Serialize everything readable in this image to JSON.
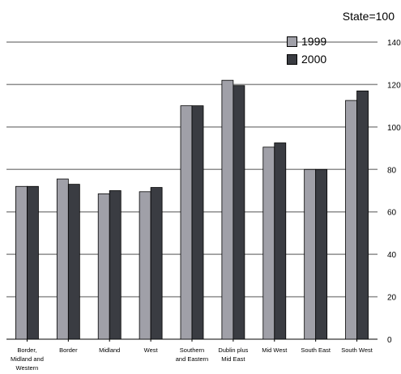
{
  "chart_data": {
    "type": "bar",
    "note": "State=100",
    "categories": [
      [
        "Border,",
        "Midland and",
        "Western"
      ],
      [
        "Border"
      ],
      [
        "Midland"
      ],
      [
        "West"
      ],
      [
        "Southern",
        "and Eastern"
      ],
      [
        "Dublin plus",
        "Mid East"
      ],
      [
        "Mid West"
      ],
      [
        "South East"
      ],
      [
        "South West"
      ]
    ],
    "series": [
      {
        "name": "1999",
        "color": "#a0a0a8",
        "values": [
          72,
          75.5,
          68.5,
          69.5,
          110,
          122,
          90.5,
          80,
          112.5
        ]
      },
      {
        "name": "2000",
        "color": "#3a3c42",
        "values": [
          72,
          73,
          70,
          71.5,
          110,
          119.5,
          92.5,
          80,
          117
        ]
      }
    ],
    "yticks": [
      0,
      20,
      40,
      60,
      80,
      100,
      120,
      140
    ],
    "ylim": [
      0,
      140
    ],
    "grid": true,
    "legend": "top-right"
  }
}
